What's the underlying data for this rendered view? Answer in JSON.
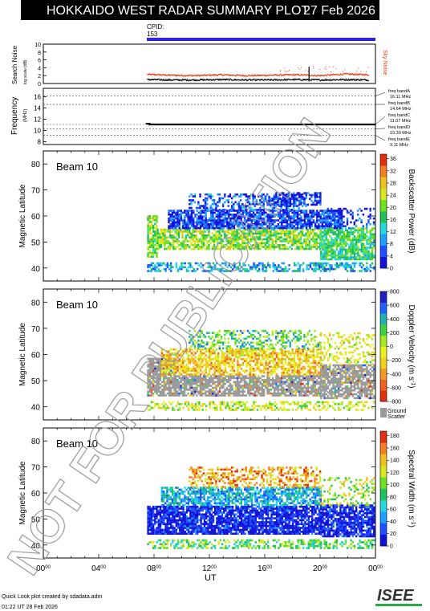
{
  "header": {
    "title": "HOKKAIDO WEST RADAR SUMMARY PLOT",
    "date": "27 Feb 2026",
    "cpid_label": "CPID:",
    "cpid_value": "153"
  },
  "watermark": "NOT FOR PUBLICATION",
  "footer": {
    "credit": "Quick Look plot created by sdadata.adm",
    "timestamp": "01:22 UT 28 Feb 2026",
    "logo": "ISEE"
  },
  "colors": {
    "banner_bg": "#000000",
    "cpid_bar": "#2a1fff",
    "noise_sky": "#e0401a",
    "noise_search": "#000000",
    "ground_scatter": "#9a9a9a"
  },
  "chart_data": [
    {
      "type": "scatter",
      "id": "noise",
      "ylabel": "Search Noise",
      "ylabel_sub": "log scale (dB)",
      "right_label": "Sky Noise",
      "yticks": [
        "0",
        "2",
        "4",
        "6",
        "8",
        "10"
      ],
      "ylim": [
        0,
        10
      ],
      "xlim": [
        0,
        24
      ],
      "series": [
        {
          "name": "Sky Noise",
          "color": "#e0401a",
          "x": [
            7.5,
            9.2,
            11.0,
            12.8,
            14.6,
            16.4,
            18.2,
            20.0,
            21.8,
            23.5
          ],
          "values": [
            2.3,
            2.1,
            2.0,
            2.2,
            2.0,
            2.1,
            2.2,
            2.0,
            2.4,
            2.2
          ]
        },
        {
          "name": "Search Noise",
          "color": "#000000",
          "x": [
            7.5,
            9.2,
            11.0,
            12.8,
            14.6,
            16.4,
            18.2,
            20.0,
            21.8,
            23.5
          ],
          "values": [
            1.0,
            0.9,
            0.9,
            1.0,
            0.9,
            0.9,
            1.0,
            0.9,
            1.0,
            0.9
          ]
        }
      ],
      "spikes": [
        {
          "x": 19.2,
          "value": 2.8
        }
      ]
    },
    {
      "type": "line",
      "id": "frequency",
      "ylabel": "Frequency",
      "ylabel_unit": "(MHz)",
      "yticks": [
        "8",
        "10",
        "12",
        "14",
        "16"
      ],
      "ylim": [
        7.5,
        17.5
      ],
      "xlim": [
        0,
        24
      ],
      "series": [
        {
          "name": "Frequency",
          "x": [
            7.6,
            24
          ],
          "values": [
            11.07,
            11.07
          ]
        }
      ],
      "bands": [
        {
          "label": "freq bandA",
          "value_text": "16.11 MHz",
          "value": 16.11
        },
        {
          "label": "freq bandB",
          "value_text": "14.64 MHz",
          "value": 14.64
        },
        {
          "label": "freq bandC",
          "value_text": "11.07 MHz",
          "value": 11.07
        },
        {
          "label": "freq bandD",
          "value_text": "10.30 MHz",
          "value": 10.3
        },
        {
          "label": "freq bandE",
          "value_text": "9.11 MHz",
          "value": 9.11
        }
      ]
    },
    {
      "type": "heatmap",
      "id": "power",
      "beam": "Beam 10",
      "ylabel": "Magnetic Latitude",
      "colorbar_label": "Backscatter Power (dB)",
      "colorbar_ticks": [
        "0",
        "4",
        "8",
        "12",
        "16",
        "20",
        "24",
        "28",
        "32",
        "36"
      ],
      "yticks": [
        "40",
        "50",
        "60",
        "70",
        "80"
      ],
      "ylim": [
        35,
        85
      ],
      "xlim": [
        0,
        24
      ],
      "grid": false,
      "colormap": [
        "#1313d8",
        "#1f4fff",
        "#1f9fff",
        "#22d8d8",
        "#22c05a",
        "#6ee020",
        "#d8e820",
        "#f0c020",
        "#f08020",
        "#e03010"
      ],
      "regions": [
        {
          "t0": 7.5,
          "t1": 23.9,
          "lat0": 38.5,
          "lat1": 42.0,
          "density": 0.5,
          "value": 0.3
        },
        {
          "t0": 7.5,
          "t1": 8.2,
          "lat0": 44.0,
          "lat1": 60.0,
          "density": 0.8,
          "value": 0.55
        },
        {
          "t0": 8.2,
          "t1": 20.0,
          "lat0": 47.0,
          "lat1": 55.0,
          "density": 0.75,
          "value": 0.55
        },
        {
          "t0": 9.0,
          "t1": 21.5,
          "lat0": 55.0,
          "lat1": 62.0,
          "density": 0.8,
          "value": 0.12
        },
        {
          "t0": 10.5,
          "t1": 19.0,
          "lat0": 62.0,
          "lat1": 68.0,
          "density": 0.45,
          "value": 0.15
        },
        {
          "t0": 16.0,
          "t1": 20.0,
          "lat0": 64.0,
          "lat1": 69.0,
          "density": 0.55,
          "value": 0.1
        },
        {
          "t0": 20.0,
          "t1": 23.9,
          "lat0": 43.0,
          "lat1": 55.0,
          "density": 0.8,
          "value": 0.45
        },
        {
          "t0": 20.5,
          "t1": 23.9,
          "lat0": 55.0,
          "lat1": 63.0,
          "density": 0.3,
          "value": 0.1
        }
      ]
    },
    {
      "type": "heatmap",
      "id": "velocity",
      "beam": "Beam 10",
      "ylabel": "Magnetic Latitude",
      "colorbar_label": "Doppler Velocity (m s",
      "colorbar_label_sup": "-1",
      "colorbar_label_end": ")",
      "colorbar_ticks": [
        "-800",
        "-600",
        "-400",
        "-200",
        "0",
        "200",
        "400",
        "600",
        "800"
      ],
      "ground_scatter_label": [
        "Ground",
        "Scatter"
      ],
      "yticks": [
        "40",
        "50",
        "60",
        "70",
        "80"
      ],
      "ylim": [
        35,
        85
      ],
      "xlim": [
        0,
        24
      ],
      "grid": false,
      "colormap": [
        "#e03010",
        "#f06020",
        "#f09a20",
        "#f0d020",
        "#e8f020",
        "#a8e820",
        "#40d040",
        "#20b0b0",
        "#2060ff",
        "#2020c0"
      ],
      "regions": [
        {
          "t0": 7.5,
          "t1": 23.9,
          "lat0": 38.5,
          "lat1": 42.0,
          "density": 0.45,
          "value": 0.5
        },
        {
          "t0": 7.5,
          "t1": 9.5,
          "lat0": 44.0,
          "lat1": 58.0,
          "density": 0.85,
          "value": "ground"
        },
        {
          "t0": 9.5,
          "t1": 20.0,
          "lat0": 44.0,
          "lat1": 52.0,
          "density": 0.8,
          "value": "ground"
        },
        {
          "t0": 8.5,
          "t1": 20.0,
          "lat0": 52.0,
          "lat1": 62.0,
          "density": 0.65,
          "value": 0.35
        },
        {
          "t0": 10.5,
          "t1": 20.0,
          "lat0": 62.0,
          "lat1": 69.0,
          "density": 0.4,
          "value": 0.65
        },
        {
          "t0": 20.0,
          "t1": 23.9,
          "lat0": 43.0,
          "lat1": 56.0,
          "density": 0.75,
          "value": "ground"
        },
        {
          "t0": 20.0,
          "t1": 23.9,
          "lat0": 56.0,
          "lat1": 68.0,
          "density": 0.25,
          "value": 0.45
        }
      ]
    },
    {
      "type": "heatmap",
      "id": "width",
      "beam": "Beam 10",
      "ylabel": "Magnetic Latitude",
      "colorbar_label": "Spectral Width (m s",
      "colorbar_label_sup": "-1",
      "colorbar_label_end": ")",
      "colorbar_ticks": [
        "0",
        "20",
        "40",
        "60",
        "80",
        "100",
        "120",
        "140",
        "160",
        "180"
      ],
      "yticks": [
        "40",
        "50",
        "60",
        "70",
        "80"
      ],
      "ylim": [
        35,
        85
      ],
      "xlim": [
        0,
        24
      ],
      "grid": false,
      "colormap": [
        "#1313d8",
        "#1f4fff",
        "#1f9fff",
        "#22d8d8",
        "#22c05a",
        "#6ee020",
        "#d8e820",
        "#f0c020",
        "#f08020",
        "#e03010"
      ],
      "regions": [
        {
          "t0": 7.5,
          "t1": 23.9,
          "lat0": 38.5,
          "lat1": 42.0,
          "density": 0.45,
          "value": 0.5
        },
        {
          "t0": 7.5,
          "t1": 20.0,
          "lat0": 44.0,
          "lat1": 55.0,
          "density": 0.85,
          "value": 0.05
        },
        {
          "t0": 8.5,
          "t1": 20.0,
          "lat0": 55.0,
          "lat1": 62.0,
          "density": 0.7,
          "value": 0.3
        },
        {
          "t0": 10.5,
          "t1": 20.0,
          "lat0": 62.0,
          "lat1": 70.0,
          "density": 0.45,
          "value": 0.8
        },
        {
          "t0": 20.0,
          "t1": 23.9,
          "lat0": 43.0,
          "lat1": 55.0,
          "density": 0.8,
          "value": 0.05
        },
        {
          "t0": 20.0,
          "t1": 23.9,
          "lat0": 55.0,
          "lat1": 66.0,
          "density": 0.25,
          "value": 0.6
        }
      ]
    }
  ],
  "xaxis": {
    "label": "UT",
    "ticks": [
      {
        "x": 0,
        "hh": "00",
        "mm": "00"
      },
      {
        "x": 4,
        "hh": "04",
        "mm": "00"
      },
      {
        "x": 8,
        "hh": "08",
        "mm": "00"
      },
      {
        "x": 12,
        "hh": "12",
        "mm": "00"
      },
      {
        "x": 16,
        "hh": "16",
        "mm": "00"
      },
      {
        "x": 20,
        "hh": "20",
        "mm": "00"
      },
      {
        "x": 24,
        "hh": "00",
        "mm": "00"
      }
    ]
  }
}
